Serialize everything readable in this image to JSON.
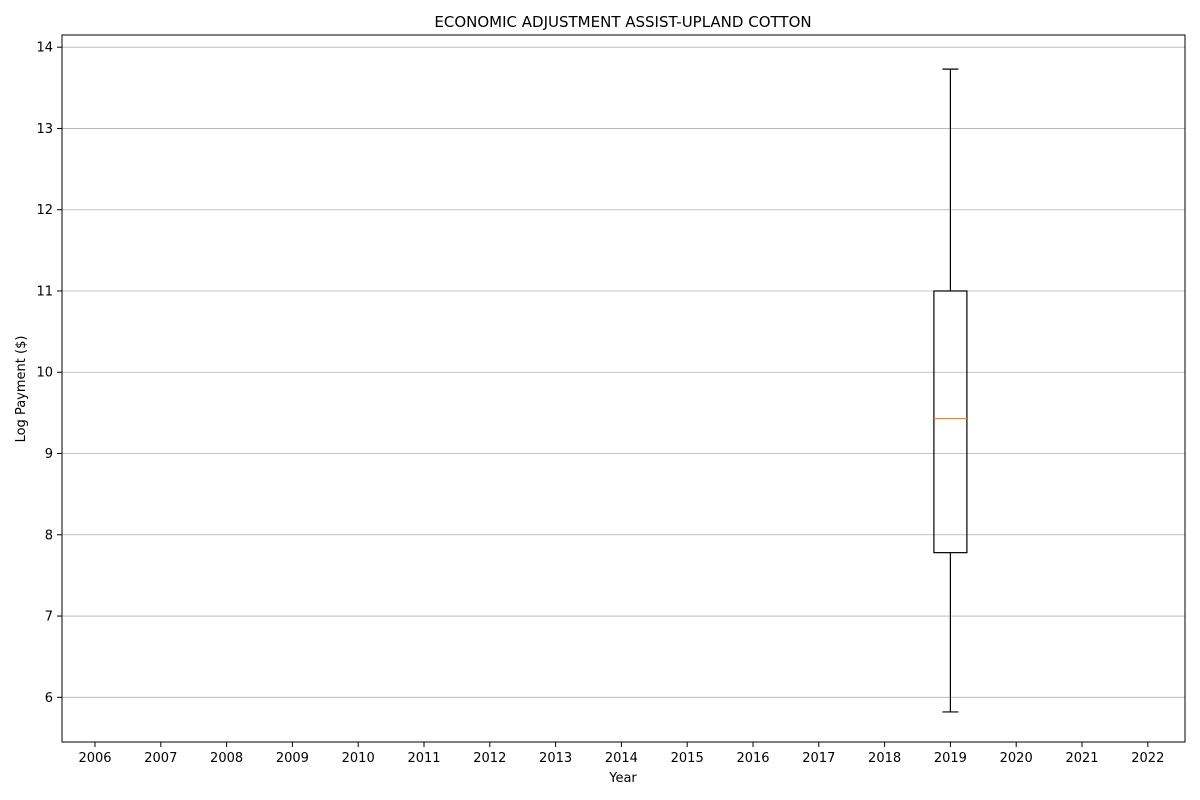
{
  "chart_data": {
    "type": "box",
    "title": "ECONOMIC ADJUSTMENT ASSIST-UPLAND COTTON",
    "xlabel": "Year",
    "ylabel": "Log Payment ($)",
    "categories": [
      "2006",
      "2007",
      "2008",
      "2009",
      "2010",
      "2011",
      "2012",
      "2013",
      "2014",
      "2015",
      "2016",
      "2017",
      "2018",
      "2019",
      "2020",
      "2021",
      "2022"
    ],
    "y_ticks": [
      6,
      7,
      8,
      9,
      10,
      11,
      12,
      13,
      14
    ],
    "ylim": [
      5.45,
      14.15
    ],
    "grid": "horizontal",
    "boxes": [
      {
        "category": "2019",
        "whisker_low": 5.82,
        "q1": 7.78,
        "median": 9.43,
        "q3": 11.0,
        "whisker_high": 13.73
      }
    ],
    "colors": {
      "box": "#000000",
      "median": "#ff7f0e",
      "grid": "#b0b0b0"
    }
  }
}
